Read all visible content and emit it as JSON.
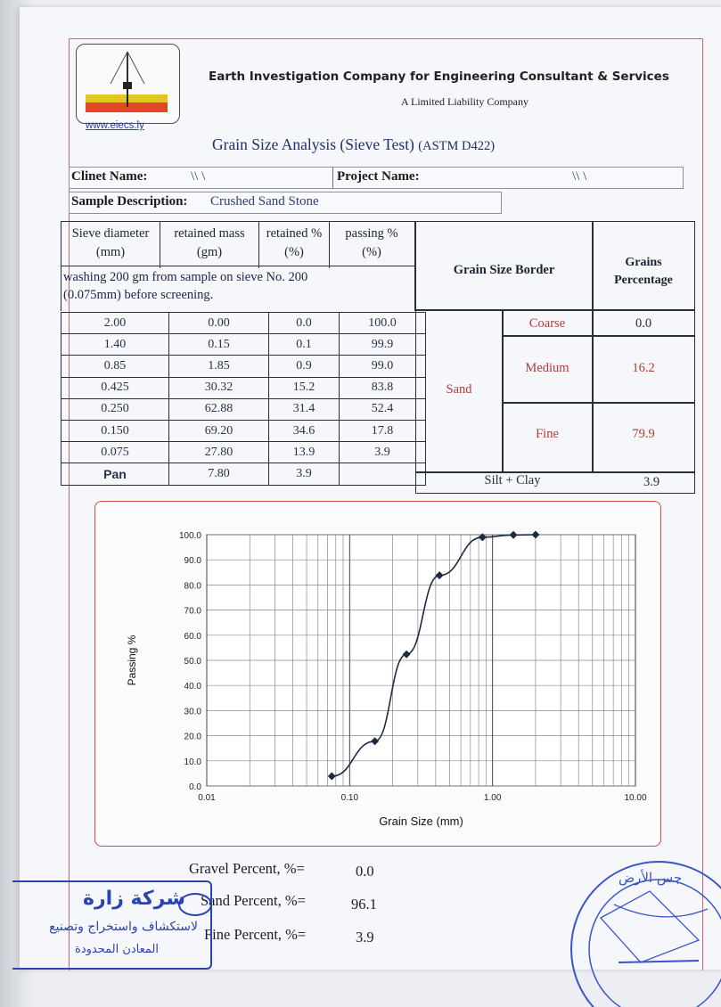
{
  "header": {
    "company_name": "Earth Investigation Company for Engineering Consultant & Services",
    "company_subtitle": "A Limited Liability Company",
    "website": "www.eiecs.ly"
  },
  "document": {
    "title": "Grain Size Analysis (Sieve Test)",
    "standard": "(ASTM D422)"
  },
  "info": {
    "client_label": "Clinet Name:",
    "client_value": "\\\\ \\",
    "project_label": "Project Name:",
    "project_value": "\\\\ \\",
    "sample_label": "Sample Description:",
    "sample_value": "Crushed Sand Stone"
  },
  "sieve_table": {
    "headers": [
      "Sieve diameter",
      "retained mass",
      "retained %",
      "passing %"
    ],
    "units": [
      "(mm)",
      "(gm)",
      "(%)",
      "(%)"
    ],
    "note": "washing 200 gm from sample on sieve No. 200 (0.075mm) before screening.",
    "rows": [
      [
        "2.00",
        "0.00",
        "0.0",
        "100.0"
      ],
      [
        "1.40",
        "0.15",
        "0.1",
        "99.9"
      ],
      [
        "0.85",
        "1.85",
        "0.9",
        "99.0"
      ],
      [
        "0.425",
        "30.32",
        "15.2",
        "83.8"
      ],
      [
        "0.250",
        "62.88",
        "31.4",
        "52.4"
      ],
      [
        "0.150",
        "69.20",
        "34.6",
        "17.8"
      ],
      [
        "0.075",
        "27.80",
        "13.9",
        "3.9"
      ],
      [
        "Pan",
        "7.80",
        "3.9",
        ""
      ]
    ]
  },
  "grain_border": {
    "header": "Grain Size Border",
    "percentage_header_1": "Grains",
    "percentage_header_2": "Percentage",
    "sand_label": "Sand",
    "coarse_label": "Coarse",
    "coarse_value": "0.0",
    "medium_label": "Medium",
    "medium_value": "16.2",
    "fine_label": "Fine",
    "fine_value": "79.9",
    "silt_clay_label": "Silt + Clay",
    "silt_clay_value": "3.9"
  },
  "chart_data": {
    "type": "scatter",
    "xlabel": "Grain Size (mm)",
    "ylabel": "Passing %",
    "x_scale": "log",
    "xlim": [
      0.01,
      10
    ],
    "ylim": [
      0,
      100
    ],
    "x_ticks": [
      "0.01",
      "0.10",
      "1.00",
      "10.00"
    ],
    "y_ticks": [
      "0.0",
      "10.0",
      "20.0",
      "30.0",
      "40.0",
      "50.0",
      "60.0",
      "70.0",
      "80.0",
      "90.0",
      "100.0"
    ],
    "grid": true,
    "series": [
      {
        "x": [
          2.0,
          1.4,
          0.85,
          0.425,
          0.25,
          0.15,
          0.075
        ],
        "y": [
          100.0,
          99.9,
          99.0,
          83.8,
          52.4,
          17.8,
          3.9
        ],
        "marker": "diamond",
        "color": "#1f2a44"
      }
    ]
  },
  "summary": {
    "gravel_label": "Gravel Percent, %=",
    "gravel_value": "0.0",
    "sand_label": "Sand Percent, %=",
    "sand_value": "96.1",
    "fine_label": "Fine Percent, %=",
    "fine_value": "3.9"
  },
  "stamp": {
    "line1": "شركة زارة",
    "line2": "لاستكشاف واستخراج وتصنيع",
    "line3": "المعادن المحدودة",
    "color": "#2c44b0"
  },
  "seal": {
    "text": "جس الأرض",
    "color": "#3a55c8"
  }
}
